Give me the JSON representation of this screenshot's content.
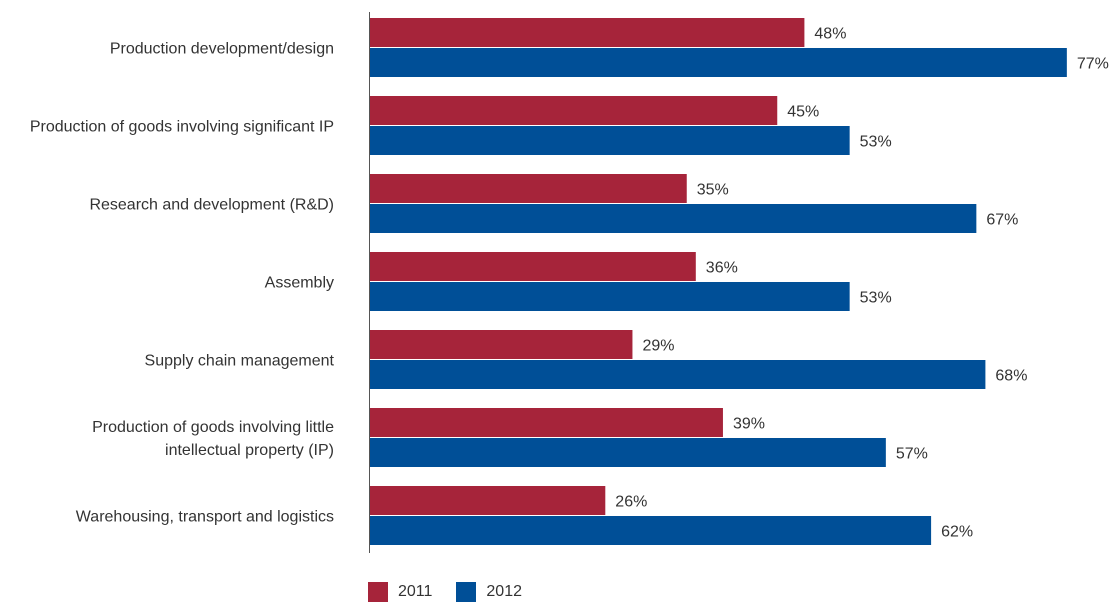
{
  "chart_data": {
    "type": "bar",
    "orientation": "horizontal",
    "categories": [
      "Production development/design",
      "Production of goods involving significant IP",
      "Research and development (R&D)",
      "Assembly",
      "Supply chain management",
      "Production of goods involving little\nintellectual property (IP)",
      "Warehousing, transport and logistics"
    ],
    "series": [
      {
        "name": "2011",
        "color": "#a6243a",
        "values": [
          48,
          45,
          35,
          36,
          29,
          39,
          26
        ],
        "labels": [
          "48%",
          "45%",
          "35%",
          "36%",
          "29%",
          "39%",
          "26%"
        ]
      },
      {
        "name": "2012",
        "color": "#004f97",
        "values": [
          77,
          53,
          67,
          53,
          68,
          57,
          62
        ],
        "labels": [
          "77%",
          "53%",
          "67%",
          "53%",
          "68%",
          "57%",
          "62%"
        ]
      }
    ],
    "xlim": [
      0,
      100
    ],
    "grid": false,
    "legend_position": "bottom-left"
  }
}
